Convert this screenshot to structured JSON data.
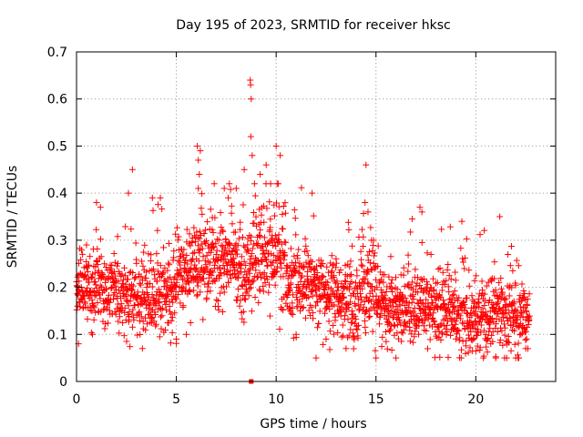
{
  "chart_data": {
    "type": "scatter",
    "title": "Day 195 of 2023, SRMTID for receiver hksc",
    "xlabel": "GPS time / hours",
    "ylabel": "SRMTID / TECUs",
    "xlim": [
      0,
      24
    ],
    "ylim": [
      0,
      0.7
    ],
    "xticks": [
      0,
      5,
      10,
      15,
      20
    ],
    "xtick_labels": [
      "0",
      "5",
      "10",
      "15",
      "20"
    ],
    "yticks": [
      0,
      0.1,
      0.2,
      0.3,
      0.4,
      0.5,
      0.6,
      0.7
    ],
    "ytick_labels": [
      "0",
      "0.1",
      "0.2",
      "0.3",
      "0.4",
      "0.5",
      "0.6",
      "0.7"
    ],
    "grid": true,
    "marker_color": "#ff0000",
    "series": [
      {
        "name": "SRMTID",
        "marker": "plus",
        "generated_fill": true,
        "x": [
          0.05,
          0.1,
          0.3,
          0.5,
          0.8,
          1.0,
          1.2,
          2.8,
          2.6,
          3.3,
          3.8,
          4.2,
          5.0,
          5.5,
          6.05,
          6.1,
          6.15,
          6.1,
          6.2,
          7.4,
          7.6,
          8.0,
          8.4,
          8.7,
          8.72,
          8.75,
          8.73,
          8.8,
          9.2,
          9.5,
          10.0,
          10.2,
          11.8,
          11.0,
          12.0,
          12.5,
          13.5,
          14.45,
          14.5,
          14.6,
          15.0,
          16.0,
          17.2,
          17.3,
          19.3,
          21.2,
          21.0,
          22.0,
          22.5
        ],
        "y": [
          0.16,
          0.08,
          0.27,
          0.29,
          0.1,
          0.38,
          0.37,
          0.45,
          0.4,
          0.07,
          0.39,
          0.39,
          0.09,
          0.1,
          0.5,
          0.47,
          0.44,
          0.41,
          0.49,
          0.41,
          0.39,
          0.41,
          0.45,
          0.64,
          0.63,
          0.6,
          0.52,
          0.48,
          0.44,
          0.46,
          0.5,
          0.48,
          0.4,
          0.1,
          0.05,
          0.09,
          0.07,
          0.38,
          0.46,
          0.36,
          0.05,
          0.05,
          0.37,
          0.36,
          0.34,
          0.35,
          0.05,
          0.05,
          0.07
        ]
      },
      {
        "name": "zero-value marker",
        "marker": "square",
        "x": [
          8.75
        ],
        "y": [
          0.0
        ]
      }
    ]
  }
}
